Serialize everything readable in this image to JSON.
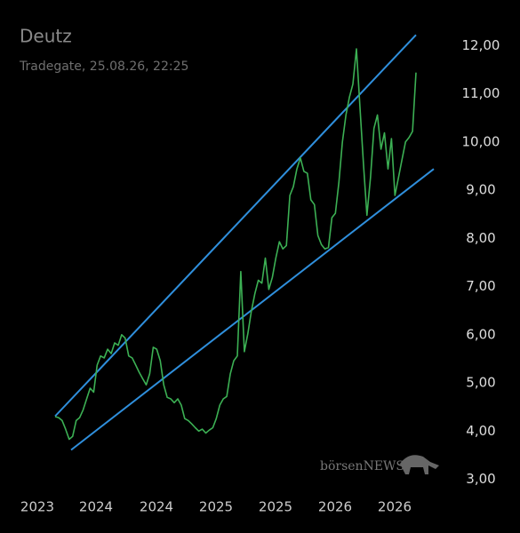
{
  "chart_data": {
    "type": "line",
    "title": "Deutz",
    "subtitle": "Tradegate, 25.08.26, 22:25",
    "watermark": "börsenNEWS",
    "x_labels": [
      "2023",
      "2024",
      "2024",
      "2025",
      "2025",
      "2026",
      "2026"
    ],
    "series": [
      {
        "color": "#3cb054",
        "values": [
          4.3,
          4.28,
          4.22,
          4.04,
          3.83,
          3.89,
          4.22,
          4.28,
          4.44,
          4.67,
          4.89,
          4.81,
          5.37,
          5.56,
          5.52,
          5.7,
          5.61,
          5.83,
          5.78,
          6.0,
          5.93,
          5.56,
          5.52,
          5.37,
          5.22,
          5.09,
          4.96,
          5.19,
          5.74,
          5.7,
          5.46,
          4.96,
          4.7,
          4.67,
          4.59,
          4.67,
          4.54,
          4.26,
          4.22,
          4.15,
          4.07,
          4.0,
          4.04,
          3.96,
          4.02,
          4.07,
          4.26,
          4.54,
          4.67,
          4.72,
          5.19,
          5.46,
          5.56,
          7.31,
          5.65,
          6.02,
          6.48,
          6.85,
          7.13,
          7.07,
          7.59,
          6.94,
          7.19,
          7.59,
          7.93,
          7.78,
          7.85,
          8.89,
          9.07,
          9.44,
          9.67,
          9.39,
          9.35,
          8.8,
          8.7,
          8.06,
          7.87,
          7.78,
          7.81,
          8.43,
          8.52,
          9.17,
          10.0,
          10.56,
          10.93,
          11.2,
          11.93,
          10.74,
          9.54,
          8.48,
          9.26,
          10.28,
          10.56,
          9.85,
          10.19,
          9.44,
          10.07,
          8.89,
          9.26,
          9.63,
          10.0,
          10.09,
          10.22,
          11.44
        ]
      }
    ],
    "trend_lines": [
      {
        "color": "#2f8fdc",
        "values": [
          4.31,
          12.22
        ]
      },
      {
        "color": "#2f8fdc",
        "values": [
          3.61,
          9.44
        ]
      }
    ],
    "ylim": [
      2.9,
      12.3
    ],
    "yticks": [
      {
        "value": 3,
        "label": "3,00"
      },
      {
        "value": 4,
        "label": "4,00"
      },
      {
        "value": 5,
        "label": "5,00"
      },
      {
        "value": 6,
        "label": "6,00"
      },
      {
        "value": 7,
        "label": "7,00"
      },
      {
        "value": 8,
        "label": "8,00"
      },
      {
        "value": 9,
        "label": "9,00"
      },
      {
        "value": 10,
        "label": "10,00"
      },
      {
        "value": 11,
        "label": "11,00"
      },
      {
        "value": 12,
        "label": "12,00"
      }
    ]
  }
}
